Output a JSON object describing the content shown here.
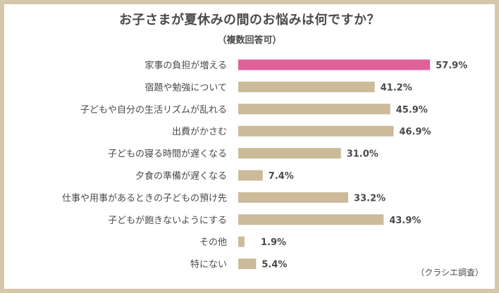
{
  "chart_data": {
    "type": "bar",
    "orientation": "horizontal",
    "title": "お子さまが夏休みの間のお悩みは何ですか？",
    "subtitle": "（複数回答可）",
    "source": "（クラシエ調査）",
    "categories": [
      "家事の負担が増える",
      "宿題や勉強について",
      "子どもや自分の生活リズムが乱れる",
      "出費がかさむ",
      "子どもの寝る時間が遅くなる",
      "夕食の準備が遅くなる",
      "仕事や用事があるときの子どもの預け先",
      "子どもが飽きないようにする",
      "その他",
      "特にない"
    ],
    "values": [
      57.9,
      41.2,
      45.9,
      46.9,
      31.0,
      7.4,
      33.2,
      43.9,
      1.9,
      5.4
    ],
    "value_labels": [
      "57.9%",
      "41.2%",
      "45.9%",
      "46.9%",
      "31.0%",
      "7.4%",
      "33.2%",
      "43.9%",
      "1.9%",
      "5.4%"
    ],
    "highlight_index": 0,
    "colors": {
      "bar": "#cbbb9b",
      "highlight": "#e0609a",
      "text": "#4a4a4a",
      "frame": "#d5c7ac"
    }
  }
}
